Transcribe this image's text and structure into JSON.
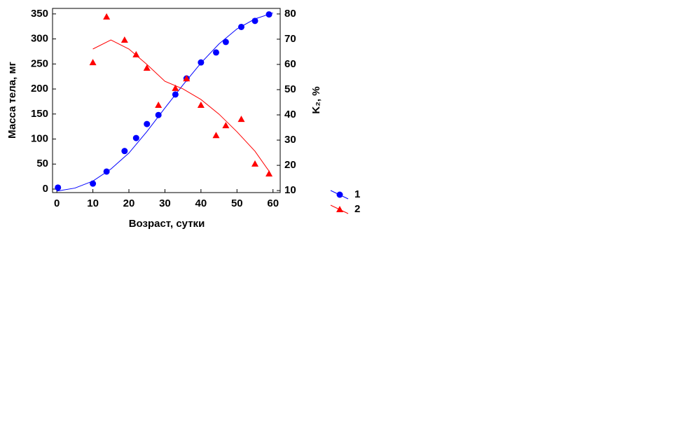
{
  "chart_data": {
    "type": "scatter",
    "x_label": "Возраст, сутки",
    "y_label": "Масса тела, мг",
    "y2_label": "K₂, %",
    "xlim": [
      -1.2,
      62
    ],
    "xticks": [
      0,
      10,
      20,
      30,
      40,
      50,
      60
    ],
    "ylim": [
      -7,
      361
    ],
    "yticks": [
      0,
      50,
      100,
      150,
      200,
      250,
      300,
      350
    ],
    "y2lim": [
      9.2,
      82.2
    ],
    "y2ticks": [
      10,
      20,
      30,
      40,
      50,
      60,
      70,
      80
    ],
    "legend": "right",
    "series": [
      {
        "name": "1",
        "color": "#0000ff",
        "marker": "circle",
        "axis": "y",
        "x": [
          0.3,
          10,
          13.8,
          18.8,
          22,
          25,
          28.2,
          32.9,
          36,
          40,
          44.2,
          46.9,
          51.2,
          55,
          58.9
        ],
        "values": [
          3,
          11,
          35,
          76,
          102,
          130,
          148,
          189,
          221,
          253,
          273,
          294,
          324,
          336,
          349
        ],
        "fit": {
          "x": [
            0,
            5,
            10,
            15,
            20,
            25,
            30,
            35,
            40,
            45,
            50,
            55,
            60
          ],
          "values": [
            -4,
            2,
            16,
            40,
            72,
            115,
            162,
            208,
            252,
            290,
            320,
            340,
            352
          ]
        }
      },
      {
        "name": "2",
        "color": "#ff0000",
        "marker": "triangle",
        "axis": "y2",
        "x": [
          10,
          13.8,
          18.8,
          22,
          25,
          28.2,
          32.9,
          36,
          40,
          44.2,
          46.9,
          51.2,
          55,
          58.9
        ],
        "values": [
          60.8,
          78.9,
          69.7,
          63.9,
          58.6,
          43.9,
          50.6,
          54.4,
          43.9,
          31.9,
          35.8,
          38.3,
          20.6,
          16.7
        ],
        "fit": {
          "x": [
            10,
            15,
            20,
            25,
            30,
            35,
            40,
            45,
            50,
            55,
            59
          ],
          "values": [
            66.1,
            69.7,
            66.1,
            60,
            53.3,
            50.3,
            46.1,
            40.3,
            33.3,
            25.6,
            17.5
          ]
        }
      }
    ]
  }
}
